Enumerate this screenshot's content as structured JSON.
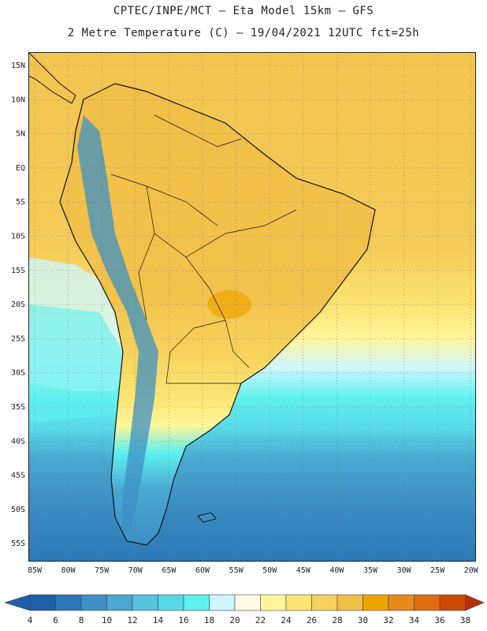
{
  "header": {
    "line1": "CPTEC/INPE/MCT –  Eta Model 15km – GFS",
    "line2": "2 Metre Temperature (C) – 19/04/2021 12UTC fct=25h"
  },
  "map": {
    "lat_labels": [
      "15N",
      "10N",
      "5N",
      "EQ",
      "5S",
      "10S",
      "15S",
      "20S",
      "25S",
      "30S",
      "35S",
      "40S",
      "45S",
      "50S",
      "55S"
    ],
    "lon_labels": [
      "85W",
      "80W",
      "75W",
      "70W",
      "65W",
      "60W",
      "55W",
      "50W",
      "45W",
      "40W",
      "35W",
      "30W",
      "25W",
      "20W"
    ],
    "grid": "dotted"
  },
  "colorbar": {
    "values": [
      "4",
      "6",
      "8",
      "10",
      "12",
      "14",
      "16",
      "18",
      "20",
      "22",
      "24",
      "26",
      "28",
      "30",
      "32",
      "34",
      "36",
      "38"
    ],
    "colors": [
      "#1f5fa8",
      "#2d78b6",
      "#3c90c4",
      "#49a8d1",
      "#56c2dd",
      "#58d8e6",
      "#5ff0f0",
      "#cdf6fb",
      "#fffbe4",
      "#fff59a",
      "#fde472",
      "#f6d25c",
      "#f0bf48",
      "#eea400",
      "#e78a1c",
      "#df6c10",
      "#cc4a06",
      "#b5300a"
    ]
  }
}
